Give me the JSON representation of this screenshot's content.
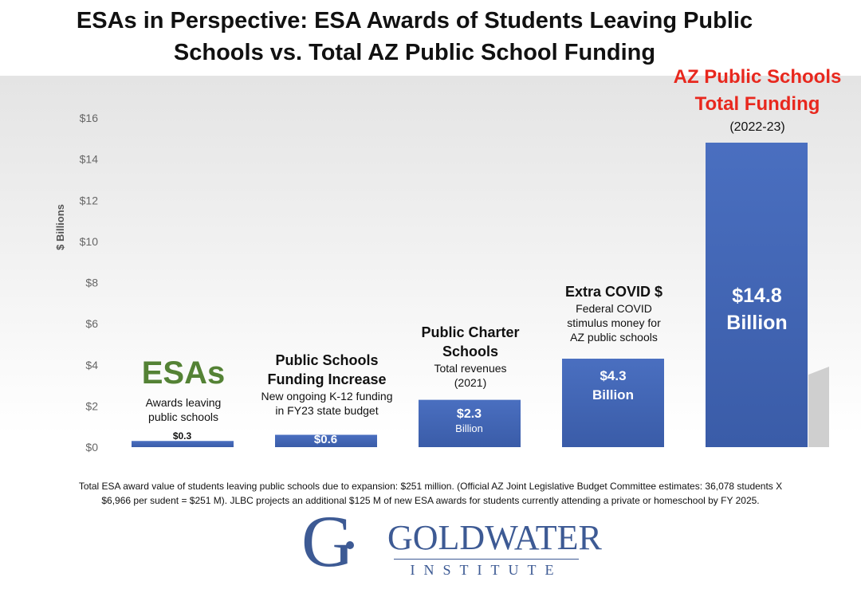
{
  "chart_data": {
    "type": "bar",
    "title": "ESAs in Perspective: ESA Awards of Students Leaving Public Schools vs. Total AZ Public School Funding",
    "ylabel": "$ Billions",
    "ylim": [
      0,
      16
    ],
    "yticks": [
      "$0",
      "$2",
      "$4",
      "$6",
      "$8",
      "$10",
      "$12",
      "$14",
      "$16"
    ],
    "grid": false,
    "categories": [
      "ESAs",
      "Public Schools Funding Increase",
      "Public Charter Schools",
      "Extra COVID $",
      "AZ Public Schools Total Funding"
    ],
    "values": [
      0.3,
      0.6,
      2.3,
      4.3,
      14.8
    ],
    "bar_color": "#4a6fc0",
    "annotations": {
      "esa": {
        "heading": "ESAs",
        "heading_color": "#548235",
        "sub1": "Awards leaving",
        "sub2": "public schools",
        "value": "$0.3"
      },
      "increase": {
        "heading1": "Public Schools",
        "heading2": "Funding Increase",
        "sub1": "New ongoing K-12 funding",
        "sub2": "in FY23 state budget",
        "value": "$0.6"
      },
      "charter": {
        "heading1": "Public Charter",
        "heading2": "Schools",
        "sub1": "Total revenues",
        "sub2": "(2021)",
        "value": "$2.3",
        "unit": "Billion"
      },
      "covid": {
        "heading": "Extra COVID $",
        "sub1": "Federal COVID",
        "sub2": "stimulus money for",
        "sub3": "AZ public schools",
        "value": "$4.3",
        "unit": "Billion"
      },
      "total": {
        "heading1": "AZ Public Schools",
        "heading2": "Total Funding",
        "heading_color": "#e8281e",
        "sub": "(2022-23)",
        "value": "$14.8",
        "unit": "Billion"
      }
    }
  },
  "footnote": {
    "line1": "Total ESA award value of students leaving public schools due to expansion: $251 million. (Official AZ Joint Legislative Budget Committee estimates: 36,078 students X",
    "line2": "$6,966 per sudent = $251 M).  JLBC projects an additional $125 M of new ESA awards for students currently attending a private or homeschool by FY 2025."
  },
  "logo": {
    "name": "GOLDWATER",
    "sub": "INSTITUTE"
  }
}
